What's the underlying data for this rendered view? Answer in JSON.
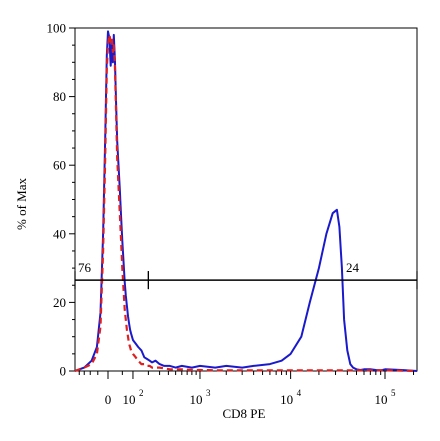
{
  "chart_data": {
    "type": "line",
    "xlabel": "CD8 PE",
    "ylabel": "% of Max",
    "ylim": [
      0,
      100
    ],
    "xscale": "biexponential",
    "x_ticks": [
      {
        "value": 0,
        "label": "0",
        "sup": ""
      },
      {
        "value": 100,
        "label": "10",
        "sup": "2"
      },
      {
        "value": 1000,
        "label": "10",
        "sup": "3"
      },
      {
        "value": 10000,
        "label": "10",
        "sup": "4"
      },
      {
        "value": 100000,
        "label": "10",
        "sup": "5"
      }
    ],
    "y_ticks": [
      0,
      20,
      40,
      60,
      80,
      100
    ],
    "gates": [
      {
        "label": "76",
        "percent": 76,
        "y": 26.5,
        "x_start": -250,
        "x_end": 200
      },
      {
        "label": "24",
        "percent": 24,
        "y": 26.5,
        "x_start": 200,
        "x_end": 262144
      }
    ],
    "series": [
      {
        "color": "#1a1acc",
        "style": "solid",
        "x": [
          -250,
          -150,
          -90,
          -55,
          -35,
          -22,
          -12,
          -5,
          0,
          4,
          8,
          12,
          15,
          18,
          22,
          26,
          30,
          35,
          40,
          45,
          50,
          55,
          60,
          65,
          70,
          75,
          80,
          85,
          90,
          100,
          115,
          130,
          150,
          170,
          190,
          210,
          230,
          260,
          300,
          350,
          420,
          500,
          600,
          800,
          1000,
          1500,
          2000,
          3000,
          4000,
          6000,
          8000,
          10000,
          13000,
          16000,
          20000,
          24000,
          28000,
          31000,
          33000,
          35000,
          37000,
          40000,
          43000,
          46000,
          50000,
          55000,
          60000,
          70000,
          80000,
          90000,
          100000,
          150000,
          262144
        ],
        "y": [
          0,
          1,
          3,
          7,
          17,
          40,
          68,
          92,
          99,
          97,
          89,
          96,
          90,
          98,
          91,
          78,
          67,
          60,
          53,
          45,
          38,
          32,
          26,
          22,
          19,
          16,
          14,
          12,
          11,
          9,
          8,
          7,
          6,
          4,
          3.5,
          3,
          2.5,
          3,
          2,
          1.5,
          1.5,
          1,
          1.5,
          1,
          1.5,
          1,
          1.5,
          1,
          1.5,
          2,
          3,
          5,
          10,
          20,
          30,
          40,
          46,
          47,
          42,
          30,
          15,
          6,
          2,
          1,
          0.5,
          0.3,
          0.5,
          0.5,
          0.3,
          0.2,
          0.5,
          0.3,
          0
        ]
      },
      {
        "color": "#e02020",
        "style": "dashed",
        "x": [
          -250,
          -150,
          -90,
          -55,
          -35,
          -22,
          -12,
          -5,
          0,
          4,
          8,
          12,
          15,
          18,
          22,
          26,
          30,
          35,
          40,
          45,
          50,
          55,
          60,
          65,
          70,
          75,
          80,
          85,
          90,
          100,
          115,
          130,
          150,
          170,
          190,
          210,
          230,
          260,
          300,
          350,
          420,
          500,
          600,
          800,
          1000,
          1500,
          2000,
          3000,
          4000,
          6000,
          8000,
          10000,
          13000,
          16000,
          20000,
          24000,
          28000,
          31000,
          33000,
          35000,
          37000,
          40000,
          43000,
          46000,
          50000,
          55000,
          60000,
          70000,
          80000,
          90000,
          100000,
          150000,
          262144
        ],
        "y": [
          0,
          1,
          2,
          5,
          13,
          35,
          62,
          88,
          95,
          98,
          96,
          97,
          93,
          95,
          89,
          75,
          62,
          54,
          46,
          38,
          30,
          24,
          18,
          15,
          12,
          10,
          8,
          7,
          6,
          5,
          4,
          3,
          2,
          2,
          1.5,
          1.5,
          1,
          1,
          1,
          0.8,
          0.5,
          0.5,
          0.5,
          0.3,
          0.3,
          0.2,
          0.2,
          0.2,
          0.2,
          0.2,
          0.2,
          0.2,
          0.2,
          0.2,
          0.2,
          0.2,
          0.2,
          0.2,
          0.2,
          0.2,
          0.2,
          0.2,
          0.2,
          0.2,
          0.2,
          0.2,
          0.2,
          0.2,
          0.2,
          0.2,
          0.2,
          0.1,
          0
        ]
      }
    ]
  }
}
